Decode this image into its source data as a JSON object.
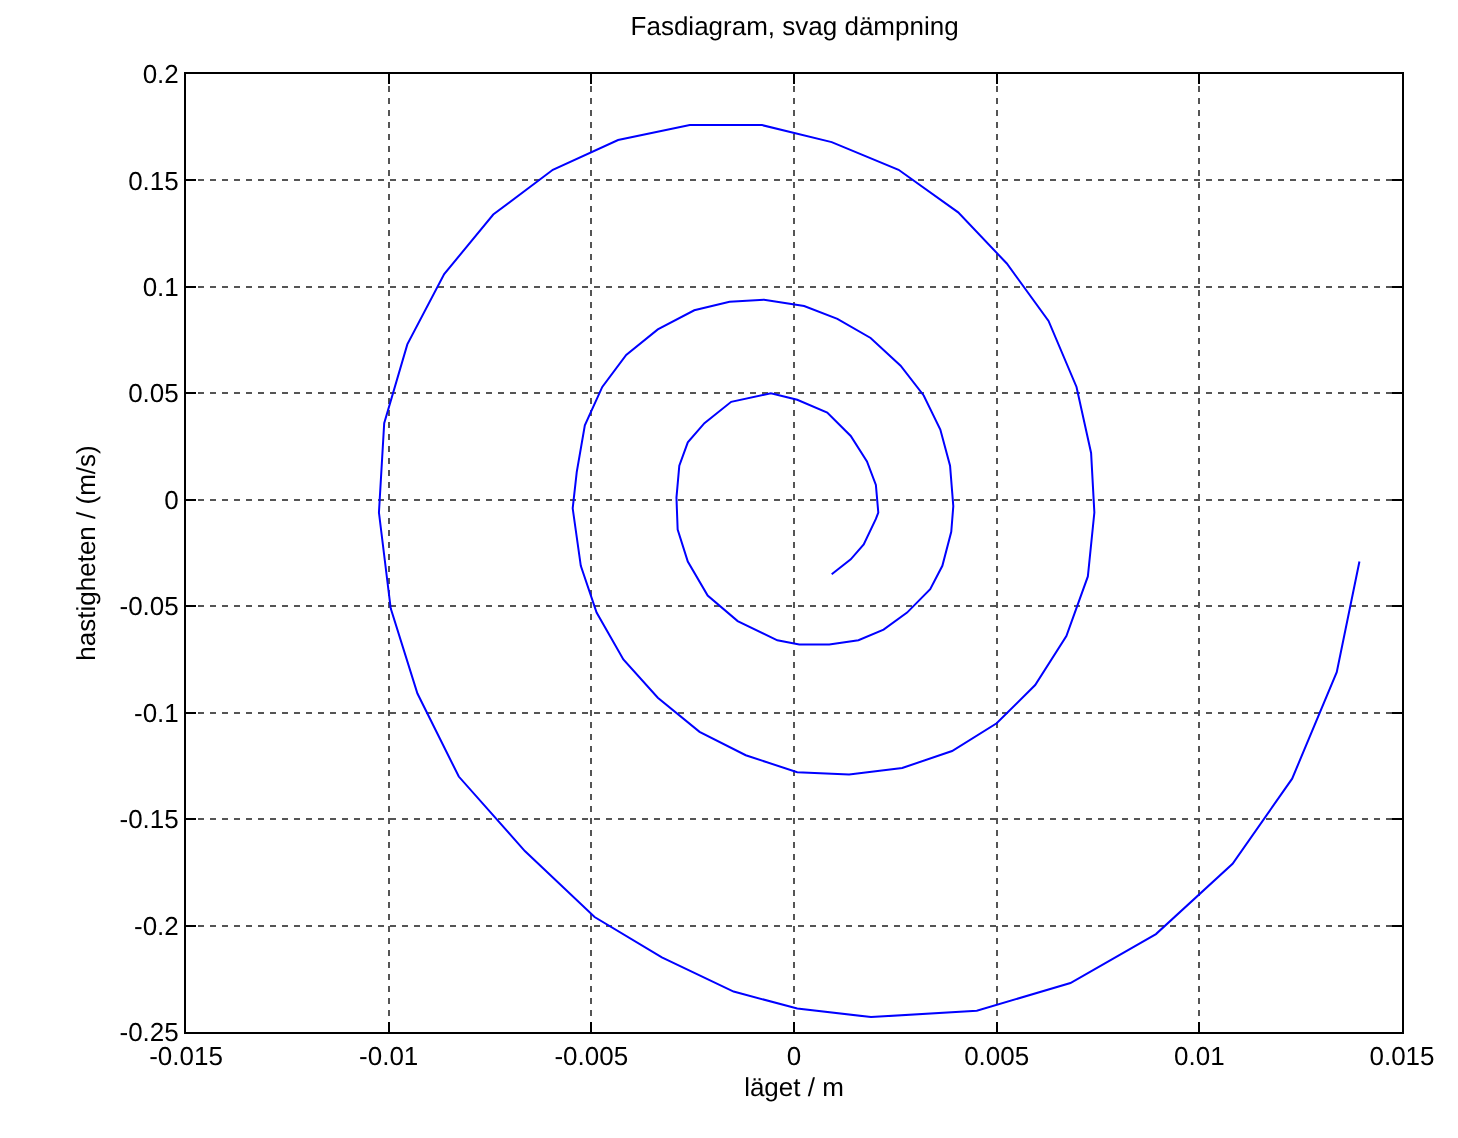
{
  "chart_data": {
    "type": "line",
    "title": "Fasdiagram, svag dämpning",
    "xlabel": "läget / m",
    "ylabel": "hastigheten / (m/s)",
    "series": [
      {
        "color": "#0000ff",
        "x": [
          0.01395,
          0.01339,
          0.01229,
          0.01082,
          0.00893,
          0.00682,
          0.00451,
          0.0019,
          8e-05,
          -0.00149,
          -0.00326,
          -0.00492,
          -0.00664,
          -0.00827,
          -0.00929,
          -0.00995,
          -0.01024,
          -0.01011,
          -0.00954,
          -0.00863,
          -0.00742,
          -0.00595,
          -0.00434,
          -0.00257,
          -0.00079,
          0.00093,
          0.00258,
          0.00405,
          0.00525,
          0.00628,
          0.00697,
          0.00733,
          0.00741,
          0.00725,
          0.00672,
          0.00595,
          0.005,
          0.0039,
          0.00267,
          0.00136,
          8e-05,
          -0.00119,
          -0.00233,
          -0.00336,
          -0.00421,
          -0.00487,
          -0.00526,
          -0.00546,
          -0.00536,
          -0.00516,
          -0.00473,
          -0.00414,
          -0.00336,
          -0.00246,
          -0.00159,
          -0.00074,
          0.00025,
          0.00107,
          0.00189,
          0.00263,
          0.0032,
          0.00361,
          0.00385,
          0.00393,
          0.00388,
          0.00366,
          0.00336,
          0.00279,
          0.00221,
          0.00159,
          0.00087,
          0.00013,
          -0.00041,
          -0.00139,
          -0.00213,
          -0.00262,
          -0.00287,
          -0.0029,
          -0.00283,
          -0.00262,
          -0.00221,
          -0.00155,
          -0.00057,
          8e-05,
          0.00082,
          0.0014,
          0.0018,
          0.00202,
          0.00208,
          0.00202,
          0.00172,
          0.0014,
          0.00093
        ],
        "values": [
          -0.029,
          -0.081,
          -0.131,
          -0.171,
          -0.204,
          -0.227,
          -0.24,
          -0.243,
          -0.239,
          -0.231,
          -0.215,
          -0.196,
          -0.165,
          -0.13,
          -0.091,
          -0.051,
          -0.006,
          0.036,
          0.073,
          0.106,
          0.134,
          0.155,
          0.169,
          0.176,
          0.176,
          0.168,
          0.155,
          0.135,
          0.111,
          0.084,
          0.053,
          0.022,
          -0.006,
          -0.036,
          -0.064,
          -0.087,
          -0.105,
          -0.118,
          -0.126,
          -0.129,
          -0.128,
          -0.12,
          -0.109,
          -0.093,
          -0.075,
          -0.053,
          -0.031,
          -0.004,
          0.013,
          0.035,
          0.053,
          0.068,
          0.08,
          0.089,
          0.093,
          0.094,
          0.091,
          0.085,
          0.076,
          0.063,
          0.049,
          0.033,
          0.016,
          -0.003,
          -0.015,
          -0.031,
          -0.042,
          -0.053,
          -0.061,
          -0.066,
          -0.068,
          -0.068,
          -0.066,
          -0.057,
          -0.045,
          -0.029,
          -0.014,
          0.001,
          0.016,
          0.027,
          0.036,
          0.046,
          0.05,
          0.047,
          0.041,
          0.03,
          0.018,
          0.007,
          -0.006,
          -0.009,
          -0.021,
          -0.028,
          -0.035
        ]
      }
    ],
    "xlim": [
      -0.015,
      0.015
    ],
    "xticks": [
      -0.015,
      -0.01,
      -0.005,
      0,
      0.005,
      0.01,
      0.015
    ],
    "ylim": [
      -0.25,
      0.2
    ],
    "yticks": [
      -0.25,
      -0.2,
      -0.15,
      -0.1,
      -0.05,
      0,
      0.05,
      0.1,
      0.15,
      0.2
    ],
    "grid": true,
    "line_style": "solid",
    "marker": "none"
  }
}
